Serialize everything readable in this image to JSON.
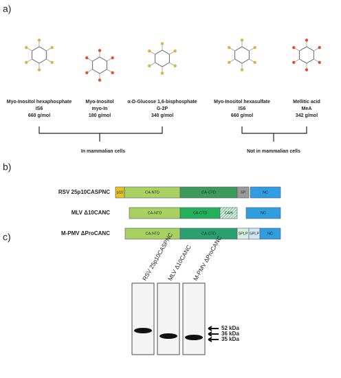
{
  "panels": [
    "a)",
    "b)",
    "c)"
  ],
  "molecules": [
    {
      "lines": [
        "Myo-Inositol hexaphosphate",
        "IS6",
        "660 g/mol"
      ]
    },
    {
      "lines": [
        "Myo-Inositol",
        "myo-In",
        "180 g/mol"
      ]
    },
    {
      "lines": [
        "α-D-Glucose 1,6-bisphosphate",
        "G-2P",
        "340 g/mol"
      ]
    },
    {
      "lines": [
        "Myo-Inositol hexasulfate",
        "IS6",
        "660 g/mol"
      ]
    },
    {
      "lines": [
        "Mellitic acid",
        "MeA",
        "342 g/mol"
      ]
    }
  ],
  "groups": [
    "In mammalian cells",
    "Not in mammalian cells"
  ],
  "constructs": [
    {
      "name": "RSV 25p10CASPNC",
      "domains": [
        {
          "label": "p10",
          "color": "#e8c020"
        },
        {
          "label": "CA-NTD",
          "color": "#a9d162"
        },
        {
          "label": "CA-CTD",
          "color": "#3d9b5c"
        },
        {
          "label": "SP",
          "color": "#9a9a9a"
        },
        {
          "label": "NC",
          "color": "#2f9de0"
        }
      ]
    },
    {
      "name": "MLV Δ10CANC",
      "domains": [
        {
          "label": "CA-NTD",
          "color": "#a9d162"
        },
        {
          "label": "CA-CTD",
          "color": "#22b05a"
        },
        {
          "label": "CAH",
          "color": "url(#hatch)"
        },
        {
          "label": "NC",
          "color": "#2f9de0"
        }
      ]
    },
    {
      "name": "M-PMV ΔProCANC",
      "domains": [
        {
          "label": "CA-NTD",
          "color": "#a9d162"
        },
        {
          "label": "CA-CTD",
          "color": "#2aa070"
        },
        {
          "label": "SPLP",
          "color": "#d6eee0"
        },
        {
          "label": "SPLP",
          "color": "#cfe6f6"
        },
        {
          "label": "NC",
          "color": "#2f9de0"
        }
      ]
    }
  ],
  "lanes": [
    "RSV 25p10CASPNC",
    "MLV Δ10CANC",
    "M-PMV ΔProCANC"
  ],
  "markers": [
    "52 kDa",
    "36 kDa",
    "35 kDa"
  ]
}
